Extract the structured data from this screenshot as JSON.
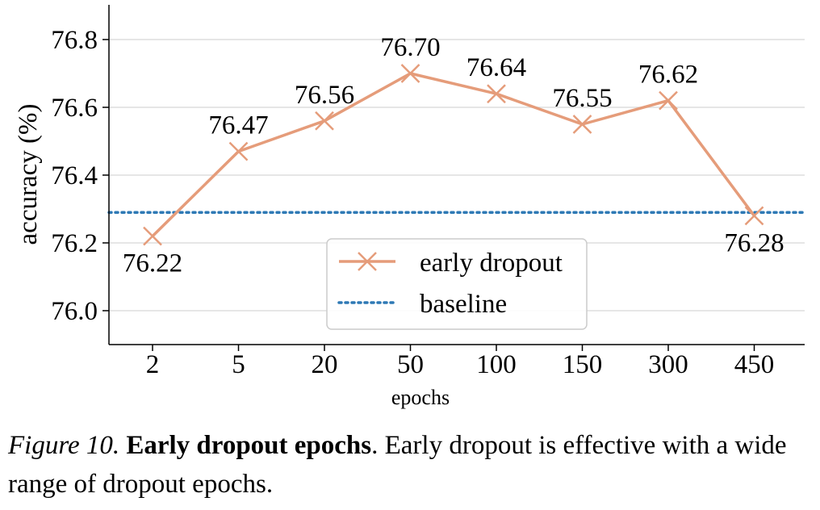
{
  "chart_data": {
    "type": "line",
    "categories": [
      "2",
      "5",
      "20",
      "50",
      "100",
      "150",
      "300",
      "450"
    ],
    "xlabel": "epochs",
    "ylabel": "accuracy (%)",
    "ylim": [
      75.9,
      76.9
    ],
    "yticks": [
      "76.0",
      "76.2",
      "76.4",
      "76.6",
      "76.8"
    ],
    "grid": "horizontal",
    "legend_position": "lower-center",
    "series": [
      {
        "name": "early dropout",
        "values": [
          76.22,
          76.47,
          76.56,
          76.7,
          76.64,
          76.55,
          76.62,
          76.28
        ],
        "labels": [
          "76.22",
          "76.47",
          "76.56",
          "76.70",
          "76.64",
          "76.55",
          "76.62",
          "76.28"
        ],
        "color": "#e59c7a",
        "marker": "x",
        "style": "solid"
      },
      {
        "name": "baseline",
        "value": 76.29,
        "color": "#2e79b5",
        "style": "dotted"
      }
    ]
  },
  "caption": {
    "figure_label": "Figure 10.",
    "title": "Early dropout epochs",
    "text": ". Early dropout is effective with a wide range of dropout epochs."
  }
}
